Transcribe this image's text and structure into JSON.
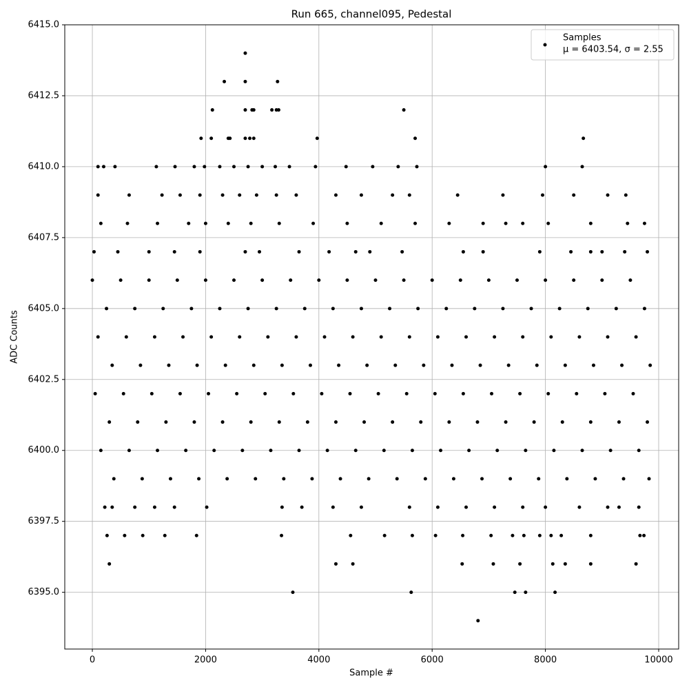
{
  "chart_data": {
    "type": "scatter",
    "title": "Run 665, channel095, Pedestal",
    "x_label": "Sample #",
    "y_label": "ADC Counts",
    "xlim": [
      -487,
      10353
    ],
    "ylim": [
      6393.0,
      6415.0
    ],
    "xticks": [
      0,
      2000,
      4000,
      6000,
      8000,
      10000
    ],
    "yticks": [
      {
        "value": 6395,
        "label": "6395.0"
      },
      {
        "value": 6397.5,
        "label": "6397.5"
      },
      {
        "value": 6400,
        "label": "6400.0"
      },
      {
        "value": 6402.5,
        "label": "6402.5"
      },
      {
        "value": 6405,
        "label": "6405.0"
      },
      {
        "value": 6407.5,
        "label": "6407.5"
      },
      {
        "value": 6410,
        "label": "6410.0"
      },
      {
        "value": 6412.5,
        "label": "6412.5"
      },
      {
        "value": 6415,
        "label": "6415.0"
      }
    ],
    "grid": true,
    "legend": "upper right",
    "x": [
      100,
      200,
      400,
      1130,
      1460,
      1800,
      1980,
      2250,
      2500,
      2750,
      3000,
      3230,
      3480,
      3940,
      4480,
      4950,
      5400,
      5730,
      8000,
      8650,
      100,
      650,
      1230,
      1550,
      1900,
      2300,
      2600,
      2900,
      3250,
      3600,
      4300,
      4750,
      5300,
      5600,
      6450,
      7250,
      7950,
      8500,
      9100,
      9420,
      150,
      620,
      1150,
      1700,
      2000,
      2400,
      2800,
      3300,
      3900,
      4500,
      5100,
      5700,
      6300,
      6900,
      7300,
      7600,
      8050,
      8800,
      9450,
      9750,
      30,
      450,
      1000,
      1450,
      1900,
      2700,
      2950,
      3650,
      4180,
      4650,
      4900,
      5470,
      6550,
      6900,
      7900,
      8450,
      8800,
      9000,
      9400,
      9800,
      0,
      500,
      1000,
      1500,
      2000,
      2500,
      3000,
      3500,
      4000,
      4500,
      5000,
      5500,
      6000,
      6500,
      7000,
      7500,
      8000,
      8500,
      9000,
      9500,
      250,
      750,
      1250,
      1750,
      2250,
      2750,
      3250,
      3750,
      4250,
      4750,
      5250,
      5750,
      6250,
      6750,
      7250,
      7750,
      8250,
      8750,
      9250,
      9750,
      100,
      600,
      1100,
      1600,
      2100,
      2600,
      3100,
      3600,
      4100,
      4600,
      5100,
      5600,
      6100,
      6600,
      7100,
      7600,
      8100,
      8600,
      9100,
      9600,
      350,
      850,
      1350,
      1850,
      2350,
      2850,
      3350,
      3850,
      4350,
      4850,
      5350,
      5850,
      6350,
      6850,
      7350,
      7850,
      8350,
      8850,
      9350,
      9850,
      50,
      550,
      1050,
      1550,
      2050,
      2550,
      3050,
      3550,
      4050,
      4550,
      5050,
      5550,
      6050,
      6550,
      7050,
      7550,
      8050,
      8550,
      9050,
      9550,
      300,
      800,
      1300,
      1800,
      2300,
      2800,
      3300,
      3800,
      4300,
      4800,
      5300,
      5800,
      6300,
      6800,
      7300,
      7800,
      8300,
      8800,
      9300,
      9800,
      150,
      650,
      1150,
      1650,
      2150,
      2650,
      3150,
      3650,
      4150,
      4650,
      5150,
      5650,
      6150,
      6650,
      7150,
      7650,
      8150,
      8650,
      9150,
      9650,
      380,
      880,
      1380,
      1880,
      2380,
      2880,
      3380,
      3880,
      4380,
      4880,
      5380,
      5880,
      6380,
      6880,
      7380,
      7880,
      8380,
      8880,
      9380,
      9830,
      220,
      350,
      750,
      1100,
      1450,
      2020,
      3350,
      3700,
      4250,
      4750,
      5600,
      6100,
      6600,
      7100,
      7600,
      8000,
      8600,
      9100,
      9300,
      9650,
      260,
      570,
      890,
      1280,
      1840,
      3340,
      4560,
      5160,
      5650,
      6060,
      6540,
      7040,
      7420,
      7620,
      7900,
      8100,
      8280,
      8800,
      9670,
      9740,
      2700,
      2330,
      2700,
      3270,
      2120,
      2700,
      2820,
      2850,
      3170,
      3250,
      3290,
      5500,
      1920,
      2100,
      2400,
      2430,
      2700,
      2780,
      2850,
      3970,
      5700,
      8670,
      3540,
      5630,
      7460,
      7650,
      8170,
      6810,
      300,
      4300,
      4600,
      6530,
      7080,
      7550,
      8130,
      8350,
      8800,
      9600
    ],
    "series": [
      {
        "name": "Samples",
        "label": "μ = 6403.54, σ = 2.55",
        "color": "#000000",
        "values": [
          6410,
          6410,
          6410,
          6410,
          6410,
          6410,
          6410,
          6410,
          6410,
          6410,
          6410,
          6410,
          6410,
          6410,
          6410,
          6410,
          6410,
          6410,
          6410,
          6410,
          6409,
          6409,
          6409,
          6409,
          6409,
          6409,
          6409,
          6409,
          6409,
          6409,
          6409,
          6409,
          6409,
          6409,
          6409,
          6409,
          6409,
          6409,
          6409,
          6409,
          6408,
          6408,
          6408,
          6408,
          6408,
          6408,
          6408,
          6408,
          6408,
          6408,
          6408,
          6408,
          6408,
          6408,
          6408,
          6408,
          6408,
          6408,
          6408,
          6408,
          6407,
          6407,
          6407,
          6407,
          6407,
          6407,
          6407,
          6407,
          6407,
          6407,
          6407,
          6407,
          6407,
          6407,
          6407,
          6407,
          6407,
          6407,
          6407,
          6407,
          6406,
          6406,
          6406,
          6406,
          6406,
          6406,
          6406,
          6406,
          6406,
          6406,
          6406,
          6406,
          6406,
          6406,
          6406,
          6406,
          6406,
          6406,
          6406,
          6406,
          6405,
          6405,
          6405,
          6405,
          6405,
          6405,
          6405,
          6405,
          6405,
          6405,
          6405,
          6405,
          6405,
          6405,
          6405,
          6405,
          6405,
          6405,
          6405,
          6405,
          6404,
          6404,
          6404,
          6404,
          6404,
          6404,
          6404,
          6404,
          6404,
          6404,
          6404,
          6404,
          6404,
          6404,
          6404,
          6404,
          6404,
          6404,
          6404,
          6404,
          6403,
          6403,
          6403,
          6403,
          6403,
          6403,
          6403,
          6403,
          6403,
          6403,
          6403,
          6403,
          6403,
          6403,
          6403,
          6403,
          6403,
          6403,
          6403,
          6403,
          6402,
          6402,
          6402,
          6402,
          6402,
          6402,
          6402,
          6402,
          6402,
          6402,
          6402,
          6402,
          6402,
          6402,
          6402,
          6402,
          6402,
          6402,
          6402,
          6402,
          6401,
          6401,
          6401,
          6401,
          6401,
          6401,
          6401,
          6401,
          6401,
          6401,
          6401,
          6401,
          6401,
          6401,
          6401,
          6401,
          6401,
          6401,
          6401,
          6401,
          6400,
          6400,
          6400,
          6400,
          6400,
          6400,
          6400,
          6400,
          6400,
          6400,
          6400,
          6400,
          6400,
          6400,
          6400,
          6400,
          6400,
          6400,
          6400,
          6400,
          6399,
          6399,
          6399,
          6399,
          6399,
          6399,
          6399,
          6399,
          6399,
          6399,
          6399,
          6399,
          6399,
          6399,
          6399,
          6399,
          6399,
          6399,
          6399,
          6399,
          6398,
          6398,
          6398,
          6398,
          6398,
          6398,
          6398,
          6398,
          6398,
          6398,
          6398,
          6398,
          6398,
          6398,
          6398,
          6398,
          6398,
          6398,
          6398,
          6398,
          6397,
          6397,
          6397,
          6397,
          6397,
          6397,
          6397,
          6397,
          6397,
          6397,
          6397,
          6397,
          6397,
          6397,
          6397,
          6397,
          6397,
          6397,
          6397,
          6397,
          6414,
          6413,
          6413,
          6413,
          6412,
          6412,
          6412,
          6412,
          6412,
          6412,
          6412,
          6412,
          6411,
          6411,
          6411,
          6411,
          6411,
          6411,
          6411,
          6411,
          6411,
          6411,
          6395,
          6395,
          6395,
          6395,
          6395,
          6394,
          6396,
          6396,
          6396,
          6396,
          6396,
          6396,
          6396,
          6396,
          6396,
          6396
        ]
      }
    ]
  }
}
